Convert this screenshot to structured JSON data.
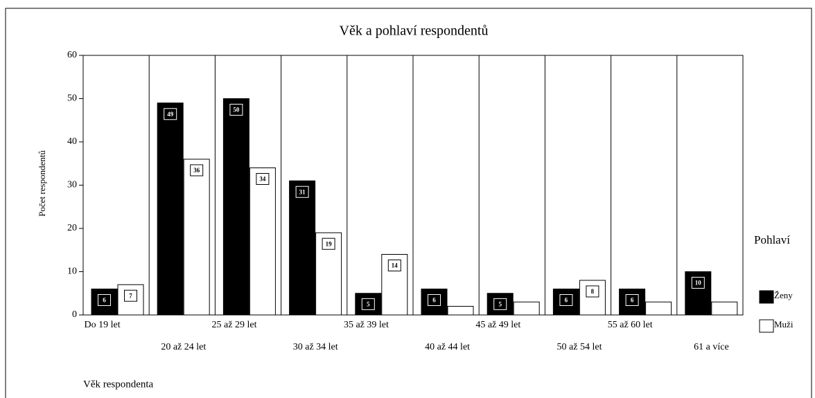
{
  "chart_data": {
    "type": "bar",
    "title": "Věk a pohlaví respondentů",
    "y_label": "Počet respondentů",
    "x_label": "Věk respondenta",
    "legend_title": "Pohlaví",
    "legend_position": "right",
    "categories": [
      "Do 19 let",
      "20 až 24 let",
      "25 až 29 let",
      "30 až 34 let",
      "35 až 39 let",
      "40 až 44 let",
      "45 až 49 let",
      "50 až 54 let",
      "55 až 60 let",
      "61 a více"
    ],
    "series": [
      {
        "name": "Ženy",
        "color": "#000000",
        "values": [
          6,
          49,
          50,
          31,
          5,
          6,
          5,
          6,
          6,
          10
        ],
        "value_labels": [
          6,
          49,
          50,
          31,
          5,
          6,
          5,
          6,
          6,
          10
        ]
      },
      {
        "name": "Muži",
        "color": "#ffffff",
        "values": [
          7,
          36,
          34,
          19,
          14,
          2,
          3,
          8,
          3,
          3
        ],
        "value_labels": [
          7,
          36,
          34,
          19,
          14,
          null,
          null,
          8,
          null,
          null
        ]
      }
    ],
    "ylim": [
      0,
      60
    ],
    "yticks": [
      0,
      10,
      20,
      30,
      40,
      50,
      60
    ],
    "grid": true
  }
}
